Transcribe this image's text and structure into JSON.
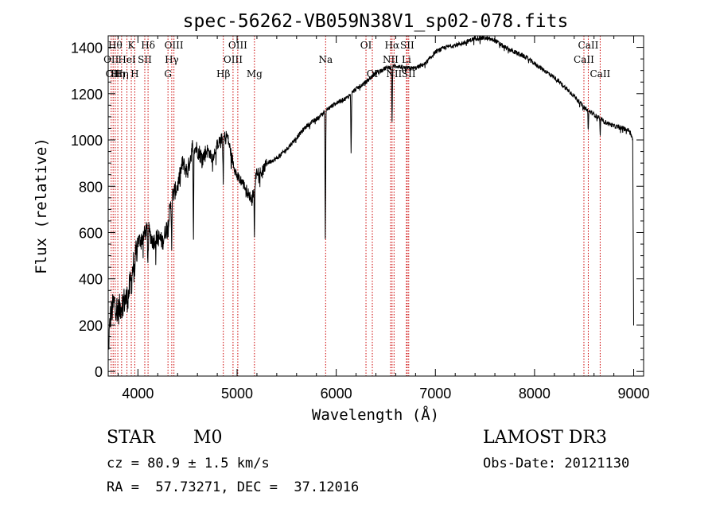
{
  "chart_data": {
    "type": "line",
    "title": "spec-56262-VB059N38V1_sp02-078.fits",
    "xlabel": "Wavelength (Å)",
    "ylabel": "Flux (relative)",
    "xlim": [
      3700,
      9100
    ],
    "ylim": [
      -20,
      1450
    ],
    "xticks": [
      4000,
      5000,
      6000,
      7000,
      8000,
      9000
    ],
    "yticks": [
      0,
      200,
      400,
      600,
      800,
      1000,
      1200,
      1400
    ],
    "grid": false,
    "line_color": "#000000",
    "marker_color": "#cc0000",
    "spectrum_anchors": {
      "x": [
        3700,
        3720,
        3760,
        3800,
        3850,
        3900,
        3950,
        4000,
        4050,
        4100,
        4150,
        4200,
        4250,
        4300,
        4350,
        4400,
        4450,
        4500,
        4550,
        4600,
        4650,
        4700,
        4750,
        4800,
        4850,
        4900,
        4950,
        5000,
        5050,
        5100,
        5150,
        5200,
        5250,
        5300,
        5400,
        5500,
        5600,
        5700,
        5800,
        5900,
        6000,
        6100,
        6200,
        6300,
        6400,
        6500,
        6600,
        6700,
        6800,
        6900,
        7000,
        7100,
        7200,
        7300,
        7400,
        7500,
        7600,
        7700,
        7800,
        7900,
        8000,
        8100,
        8200,
        8300,
        8400,
        8500,
        8600,
        8700,
        8800,
        8900,
        8960,
        8990,
        9000
      ],
      "y": [
        80,
        230,
        300,
        260,
        300,
        320,
        450,
        560,
        580,
        620,
        560,
        580,
        560,
        640,
        760,
        800,
        900,
        860,
        970,
        960,
        920,
        960,
        920,
        980,
        1010,
        1020,
        920,
        840,
        820,
        780,
        740,
        870,
        860,
        900,
        920,
        960,
        1010,
        1060,
        1090,
        1130,
        1160,
        1180,
        1220,
        1250,
        1290,
        1310,
        1320,
        1310,
        1310,
        1330,
        1380,
        1400,
        1410,
        1420,
        1440,
        1440,
        1430,
        1400,
        1380,
        1360,
        1330,
        1300,
        1270,
        1230,
        1190,
        1140,
        1110,
        1080,
        1060,
        1050,
        1040,
        1000,
        200
      ]
    },
    "spectrum_dips": [
      {
        "x": 3935,
        "y": 380
      },
      {
        "x": 3970,
        "y": 400
      },
      {
        "x": 4100,
        "y": 480
      },
      {
        "x": 4340,
        "y": 560
      },
      {
        "x": 4560,
        "y": 590
      },
      {
        "x": 4860,
        "y": 800
      },
      {
        "x": 5175,
        "y": 570
      },
      {
        "x": 5890,
        "y": 570
      },
      {
        "x": 6150,
        "y": 950
      },
      {
        "x": 6563,
        "y": 1080
      },
      {
        "x": 8542,
        "y": 1040
      },
      {
        "x": 8662,
        "y": 1030
      }
    ],
    "line_markers": [
      {
        "x": 3730,
        "label": "OII",
        "row": 1
      },
      {
        "x": 3750,
        "label": "OII",
        "row": 2
      },
      {
        "x": 3771,
        "label": "Hθ",
        "row": 0
      },
      {
        "x": 3797,
        "label": "Hη",
        "row": 2
      },
      {
        "x": 3835,
        "label": "Hη",
        "row": 2
      },
      {
        "x": 3889,
        "label": "HeI",
        "row": 1
      },
      {
        "x": 3933,
        "label": "K",
        "row": 0
      },
      {
        "x": 3968,
        "label": "H",
        "row": 2
      },
      {
        "x": 4069,
        "label": "SII",
        "row": 1
      },
      {
        "x": 4102,
        "label": "Hδ",
        "row": 0
      },
      {
        "x": 4303,
        "label": "G",
        "row": 2
      },
      {
        "x": 4341,
        "label": "Hγ",
        "row": 1
      },
      {
        "x": 4363,
        "label": "OIII",
        "row": 0
      },
      {
        "x": 4861,
        "label": "Hβ",
        "row": 2
      },
      {
        "x": 4959,
        "label": "OIII",
        "row": 1
      },
      {
        "x": 5007,
        "label": "OIII",
        "row": 0
      },
      {
        "x": 5175,
        "label": "Mg",
        "row": 2
      },
      {
        "x": 5893,
        "label": "Na",
        "row": 1
      },
      {
        "x": 6300,
        "label": "OI",
        "row": 0
      },
      {
        "x": 6364,
        "label": "OI",
        "row": 2
      },
      {
        "x": 6548,
        "label": "NII",
        "row": 1
      },
      {
        "x": 6563,
        "label": "Hα",
        "row": 0
      },
      {
        "x": 6583,
        "label": "NII",
        "row": 2
      },
      {
        "x": 6708,
        "label": "Li",
        "row": 1
      },
      {
        "x": 6716,
        "label": "SII",
        "row": 0
      },
      {
        "x": 6731,
        "label": "SII",
        "row": 2
      },
      {
        "x": 8498,
        "label": "CaII",
        "row": 1
      },
      {
        "x": 8542,
        "label": "CaII",
        "row": 0
      },
      {
        "x": 8662,
        "label": "CaII",
        "row": 2
      }
    ]
  },
  "info": {
    "object_class": "STAR",
    "subclass": "M0",
    "survey": "LAMOST DR3",
    "redshift": "cz = 80.9 ± 1.5 km/s",
    "obs_date": "Obs-Date: 20121130",
    "coordinates": "RA =  57.73271, DEC =  37.12016"
  }
}
